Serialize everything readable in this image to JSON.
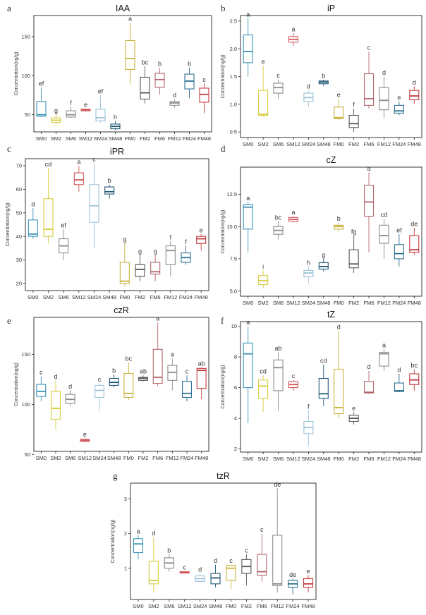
{
  "colors": {
    "SM0": "#3b93b8",
    "SM2": "#d8cc3c",
    "SM6": "#8a8a8a",
    "SM12": "#d2585b",
    "SM24": "#9cc3d8",
    "SM48": "#1f5775",
    "FM0": "#c8b23c",
    "FM2": "#555555",
    "FM6": "#b3666a",
    "FM12": "#8c8c8c",
    "FM24": "#2e6f92",
    "FM48": "#c43a3e"
  },
  "chart_data": [
    {
      "letter": "a",
      "title": "IAA",
      "type": "box",
      "ylabel": "Concentration(ng/g)",
      "ylim": [
        28,
        177
      ],
      "yticks": [
        50,
        100,
        150
      ],
      "categories": [
        "SM0",
        "SM2",
        "SM6",
        "SM12",
        "SM24",
        "SM48",
        "FM0",
        "FM2",
        "FM6",
        "FM12",
        "FM24",
        "FM48"
      ],
      "boxes": [
        {
          "min": 47,
          "q1": 48,
          "median": 50,
          "q3": 67,
          "max": 85,
          "letter": "ef"
        },
        {
          "min": 38,
          "q1": 40,
          "median": 43,
          "q3": 46,
          "max": 50,
          "letter": "g"
        },
        {
          "min": 46,
          "q1": 47,
          "median": 50,
          "q3": 55,
          "max": 60,
          "letter": "f"
        },
        {
          "min": 54,
          "q1": 55,
          "median": 56,
          "q3": 57,
          "max": 58,
          "letter": "e"
        },
        {
          "min": 40,
          "q1": 42,
          "median": 46,
          "q3": 57,
          "max": 75,
          "letter": "ef"
        },
        {
          "min": 30,
          "q1": 32,
          "median": 35,
          "q3": 38,
          "max": 42,
          "letter": "h"
        },
        {
          "min": 88,
          "q1": 108,
          "median": 122,
          "q3": 145,
          "max": 168,
          "letter": "a"
        },
        {
          "min": 64,
          "q1": 70,
          "median": 78,
          "q3": 98,
          "max": 112,
          "letter": "bc"
        },
        {
          "min": 76,
          "q1": 85,
          "median": 95,
          "q3": 103,
          "max": 110,
          "letter": "b"
        },
        {
          "min": 59,
          "q1": 62,
          "median": 65,
          "q3": 67,
          "max": 70,
          "letter": "d"
        },
        {
          "min": 71,
          "q1": 83,
          "median": 93,
          "q3": 102,
          "max": 110,
          "letter": "b"
        },
        {
          "min": 52,
          "q1": 66,
          "median": 76,
          "q3": 84,
          "max": 90,
          "letter": "c"
        }
      ]
    },
    {
      "letter": "b",
      "title": "iP",
      "type": "box",
      "ylabel": "Concentration(ng/g)",
      "ylim": [
        0.4,
        2.6
      ],
      "yticks": [
        0.5,
        1.0,
        1.5,
        2.0,
        2.5
      ],
      "categories": [
        "SM0",
        "SM2",
        "SM6",
        "SM12",
        "SM24",
        "SM48",
        "FM0",
        "FM2",
        "FM6",
        "FM12",
        "FM24",
        "FM48"
      ],
      "boxes": [
        {
          "min": 1.5,
          "q1": 1.75,
          "median": 1.95,
          "q3": 2.25,
          "max": 2.55,
          "letter": "a"
        },
        {
          "min": 0.78,
          "q1": 0.8,
          "median": 0.82,
          "q3": 1.25,
          "max": 1.7,
          "letter": "e"
        },
        {
          "min": 1.1,
          "q1": 1.2,
          "median": 1.3,
          "q3": 1.38,
          "max": 1.45,
          "letter": "c"
        },
        {
          "min": 2.05,
          "q1": 2.12,
          "median": 2.17,
          "q3": 2.22,
          "max": 2.28,
          "letter": "a"
        },
        {
          "min": 0.95,
          "q1": 1.05,
          "median": 1.12,
          "q3": 1.2,
          "max": 1.25,
          "letter": "d"
        },
        {
          "min": 1.33,
          "q1": 1.37,
          "median": 1.4,
          "q3": 1.42,
          "max": 1.44,
          "letter": "b"
        },
        {
          "min": 0.72,
          "q1": 0.74,
          "median": 0.76,
          "q3": 0.95,
          "max": 1.1,
          "letter": "e"
        },
        {
          "min": 0.5,
          "q1": 0.58,
          "median": 0.65,
          "q3": 0.8,
          "max": 0.92,
          "letter": "f"
        },
        {
          "min": 0.92,
          "q1": 0.98,
          "median": 1.1,
          "q3": 1.55,
          "max": 1.95,
          "letter": "c"
        },
        {
          "min": 0.75,
          "q1": 0.9,
          "median": 1.07,
          "q3": 1.3,
          "max": 1.5,
          "letter": "d"
        },
        {
          "min": 0.8,
          "q1": 0.84,
          "median": 0.88,
          "q3": 0.98,
          "max": 1.05,
          "letter": "e"
        },
        {
          "min": 1.0,
          "q1": 1.08,
          "median": 1.15,
          "q3": 1.25,
          "max": 1.32,
          "letter": "d"
        }
      ]
    },
    {
      "letter": "c",
      "title": "iPR",
      "type": "box",
      "ylabel": "Concentration(ng/g)",
      "ylim": [
        17,
        73
      ],
      "yticks": [
        20,
        30,
        40,
        50,
        60,
        70
      ],
      "categories": [
        "SM0",
        "SM2",
        "SM6",
        "SM12",
        "SM24",
        "SM48",
        "FM0",
        "FM2",
        "FM6",
        "FM12",
        "FM24",
        "FM48"
      ],
      "boxes": [
        {
          "min": 39,
          "q1": 40,
          "median": 41,
          "q3": 47,
          "max": 52,
          "letter": "d"
        },
        {
          "min": 37,
          "q1": 40,
          "median": 43,
          "q3": 56,
          "max": 69,
          "letter": "cd"
        },
        {
          "min": 30,
          "q1": 33,
          "median": 36,
          "q3": 39,
          "max": 43,
          "letter": "ef"
        },
        {
          "min": 59,
          "q1": 62,
          "median": 64,
          "q3": 67,
          "max": 70,
          "letter": "a"
        },
        {
          "min": 35,
          "q1": 46,
          "median": 53,
          "q3": 62,
          "max": 71,
          "letter": "c"
        },
        {
          "min": 56,
          "q1": 58,
          "median": 59,
          "q3": 61,
          "max": 62,
          "letter": "b"
        },
        {
          "min": 19,
          "q1": 20,
          "median": 21,
          "q3": 29,
          "max": 37,
          "letter": "g"
        },
        {
          "min": 21,
          "q1": 23,
          "median": 26,
          "q3": 28,
          "max": 32,
          "letter": "g"
        },
        {
          "min": 21,
          "q1": 24,
          "median": 25,
          "q3": 29,
          "max": 32,
          "letter": "g"
        },
        {
          "min": 23,
          "q1": 28,
          "median": 34,
          "q3": 36,
          "max": 38,
          "letter": "f"
        },
        {
          "min": 28,
          "q1": 29,
          "median": 31,
          "q3": 33,
          "max": 36,
          "letter": "f"
        },
        {
          "min": 34,
          "q1": 37,
          "median": 39,
          "q3": 40,
          "max": 41,
          "letter": "e"
        }
      ]
    },
    {
      "letter": "d",
      "title": "cZ",
      "type": "box",
      "ylabel": "Concentration(ng/g)",
      "ylim": [
        4.6,
        14.6
      ],
      "yticks": [
        5.0,
        7.5,
        10.0,
        12.5
      ],
      "categories": [
        "SM0",
        "SM2",
        "SM6",
        "SM12",
        "SM24",
        "SM48",
        "FM0",
        "FM2",
        "FM6",
        "FM12",
        "FM24",
        "FM48"
      ],
      "boxes": [
        {
          "min": 8.0,
          "q1": 9.8,
          "median": 11.5,
          "q3": 11.7,
          "max": 11.9,
          "letter": "a"
        },
        {
          "min": 5.2,
          "q1": 5.5,
          "median": 5.8,
          "q3": 6.2,
          "max": 6.6,
          "letter": "i"
        },
        {
          "min": 9.0,
          "q1": 9.4,
          "median": 9.7,
          "q3": 10.0,
          "max": 10.4,
          "letter": "bc"
        },
        {
          "min": 10.3,
          "q1": 10.4,
          "median": 10.55,
          "q3": 10.7,
          "max": 10.8,
          "letter": "a"
        },
        {
          "min": 5.6,
          "q1": 6.1,
          "median": 6.4,
          "q3": 6.6,
          "max": 6.9,
          "letter": "h"
        },
        {
          "min": 6.5,
          "q1": 6.7,
          "median": 6.9,
          "q3": 7.2,
          "max": 7.5,
          "letter": "g"
        },
        {
          "min": 9.6,
          "q1": 9.8,
          "median": 10.0,
          "q3": 10.1,
          "max": 10.3,
          "letter": "b"
        },
        {
          "min": 6.4,
          "q1": 6.8,
          "median": 7.1,
          "q3": 8.2,
          "max": 9.3,
          "letter": "fg"
        },
        {
          "min": 8.0,
          "q1": 10.8,
          "median": 11.9,
          "q3": 13.2,
          "max": 14.2,
          "letter": "a"
        },
        {
          "min": 7.5,
          "q1": 8.7,
          "median": 9.3,
          "q3": 10.1,
          "max": 10.6,
          "letter": "cd"
        },
        {
          "min": 6.9,
          "q1": 7.5,
          "median": 7.9,
          "q3": 8.6,
          "max": 9.4,
          "letter": "ef"
        },
        {
          "min": 7.8,
          "q1": 8.0,
          "median": 8.2,
          "q3": 9.3,
          "max": 9.9,
          "letter": "de"
        }
      ]
    },
    {
      "letter": "e",
      "title": "czR",
      "type": "box",
      "ylabel": "Concentration(ng/g)",
      "ylim": [
        53,
        187
      ],
      "yticks": [
        50,
        100,
        150
      ],
      "categories": [
        "SM0",
        "SM2",
        "SM6",
        "SM12",
        "SM24",
        "SM48",
        "FM0",
        "FM2",
        "FM6",
        "FM12",
        "FM24",
        "FM48"
      ],
      "boxes": [
        {
          "min": 103,
          "q1": 108,
          "median": 113,
          "q3": 120,
          "max": 128,
          "letter": "c"
        },
        {
          "min": 75,
          "q1": 85,
          "median": 96,
          "q3": 113,
          "max": 124,
          "letter": "d"
        },
        {
          "min": 98,
          "q1": 101,
          "median": 105,
          "q3": 110,
          "max": 114,
          "letter": "d"
        },
        {
          "min": 62,
          "q1": 63,
          "median": 64,
          "q3": 65,
          "max": 66,
          "letter": "e"
        },
        {
          "min": 93,
          "q1": 107,
          "median": 114,
          "q3": 119,
          "max": 121,
          "letter": "c"
        },
        {
          "min": 117,
          "q1": 119,
          "median": 122,
          "q3": 126,
          "max": 130,
          "letter": "b"
        },
        {
          "min": 104,
          "q1": 107,
          "median": 111,
          "q3": 131,
          "max": 142,
          "letter": "bc"
        },
        {
          "min": 123,
          "q1": 124,
          "median": 126,
          "q3": 127,
          "max": 129,
          "letter": "ab"
        },
        {
          "min": 118,
          "q1": 121,
          "median": 127,
          "q3": 155,
          "max": 182,
          "letter": "a"
        },
        {
          "min": 114,
          "q1": 124,
          "median": 132,
          "q3": 139,
          "max": 146,
          "letter": "a"
        },
        {
          "min": 103,
          "q1": 107,
          "median": 111,
          "q3": 123,
          "max": 129,
          "letter": "c"
        },
        {
          "min": 105,
          "q1": 116,
          "median": 134,
          "q3": 136,
          "max": 137,
          "letter": "ab"
        }
      ]
    },
    {
      "letter": "f",
      "title": "tZ",
      "type": "box",
      "ylabel": "Concentration(ng/g)",
      "ylim": [
        1.8,
        10.3
      ],
      "yticks": [
        2,
        4,
        6,
        8,
        10
      ],
      "categories": [
        "SM0",
        "SM2",
        "SM6",
        "SM12",
        "SM24",
        "SM48",
        "FM0",
        "FM2",
        "FM6",
        "FM12",
        "FM24",
        "FM48"
      ],
      "boxes": [
        {
          "min": 3.7,
          "q1": 6.0,
          "median": 8.2,
          "q3": 8.9,
          "max": 10.0,
          "letter": "a"
        },
        {
          "min": 4.4,
          "q1": 5.3,
          "median": 6.1,
          "q3": 6.5,
          "max": 6.8,
          "letter": "cd"
        },
        {
          "min": 4.5,
          "q1": 5.8,
          "median": 7.3,
          "q3": 7.8,
          "max": 8.3,
          "letter": "ab"
        },
        {
          "min": 5.8,
          "q1": 6.0,
          "median": 6.2,
          "q3": 6.4,
          "max": 6.5,
          "letter": "c"
        },
        {
          "min": 2.2,
          "q1": 3.0,
          "median": 3.4,
          "q3": 3.8,
          "max": 4.5,
          "letter": "f"
        },
        {
          "min": 4.8,
          "q1": 5.3,
          "median": 5.6,
          "q3": 6.6,
          "max": 7.5,
          "letter": "cd"
        },
        {
          "min": 4.0,
          "q1": 4.3,
          "median": 4.7,
          "q3": 7.2,
          "max": 9.7,
          "letter": "d"
        },
        {
          "min": 3.6,
          "q1": 3.8,
          "median": 4.0,
          "q3": 4.2,
          "max": 4.4,
          "letter": "e"
        },
        {
          "min": 5.6,
          "q1": 5.65,
          "median": 5.7,
          "q3": 6.4,
          "max": 7.1,
          "letter": "d"
        },
        {
          "min": 7.1,
          "q1": 7.4,
          "median": 8.2,
          "q3": 8.3,
          "max": 8.5,
          "letter": "a"
        },
        {
          "min": 5.7,
          "q1": 5.75,
          "median": 5.8,
          "q3": 6.3,
          "max": 6.9,
          "letter": "d"
        },
        {
          "min": 5.8,
          "q1": 6.2,
          "median": 6.5,
          "q3": 6.9,
          "max": 7.2,
          "letter": "bc"
        }
      ]
    },
    {
      "letter": "g",
      "title": "tzR",
      "type": "box",
      "ylabel": "Concentration(ng/g)",
      "ylim": [
        0.1,
        3.45
      ],
      "yticks": [
        1,
        2,
        3
      ],
      "categories": [
        "SM0",
        "SM2",
        "SM6",
        "SM12",
        "SM24",
        "SM48",
        "FM0",
        "FM2",
        "FM6",
        "FM12",
        "FM24",
        "FM48"
      ],
      "boxes": [
        {
          "min": 1.25,
          "q1": 1.45,
          "median": 1.7,
          "q3": 1.85,
          "max": 1.95,
          "letter": "a"
        },
        {
          "min": 0.3,
          "q1": 0.55,
          "median": 0.65,
          "q3": 1.2,
          "max": 1.9,
          "letter": "d"
        },
        {
          "min": 0.9,
          "q1": 1.0,
          "median": 1.15,
          "q3": 1.3,
          "max": 1.4,
          "letter": "b"
        },
        {
          "min": 0.85,
          "q1": 0.86,
          "median": 0.88,
          "q3": 0.9,
          "max": 0.91,
          "letter": "c"
        },
        {
          "min": 0.6,
          "q1": 0.62,
          "median": 0.7,
          "q3": 0.78,
          "max": 0.85,
          "letter": "d"
        },
        {
          "min": 0.45,
          "q1": 0.55,
          "median": 0.72,
          "q3": 0.85,
          "max": 1.1,
          "letter": "d"
        },
        {
          "min": 0.4,
          "q1": 0.65,
          "median": 1.0,
          "q3": 1.08,
          "max": 1.1,
          "letter": "c"
        },
        {
          "min": 0.5,
          "q1": 0.85,
          "median": 1.05,
          "q3": 1.25,
          "max": 1.4,
          "letter": "c"
        },
        {
          "min": 0.62,
          "q1": 0.8,
          "median": 0.9,
          "q3": 1.4,
          "max": 2.0,
          "letter": "c"
        },
        {
          "min": 0.3,
          "q1": 0.5,
          "median": 0.55,
          "q3": 1.95,
          "max": 3.3,
          "letter": "de"
        },
        {
          "min": 0.25,
          "q1": 0.45,
          "median": 0.55,
          "q3": 0.65,
          "max": 0.7,
          "letter": "de"
        },
        {
          "min": 0.3,
          "q1": 0.45,
          "median": 0.55,
          "q3": 0.7,
          "max": 0.8,
          "letter": "e"
        }
      ]
    }
  ]
}
